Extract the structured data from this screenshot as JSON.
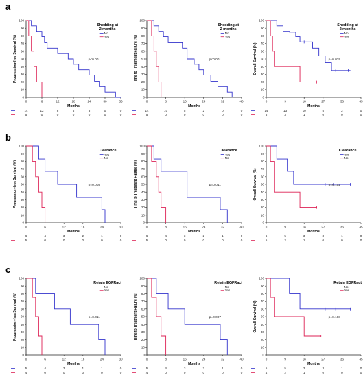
{
  "panels": [
    {
      "letter": "a"
    },
    {
      "letter": "b"
    },
    {
      "letter": "c"
    }
  ],
  "chart_data": [
    {
      "type": "line",
      "panel": "a",
      "title": "Shedding at 2 months",
      "xlabel": "Months",
      "ylabel": "Progression-free Survival (%)",
      "xlim": [
        0,
        36
      ],
      "ylim": [
        0,
        100
      ],
      "xticks": [
        0,
        6,
        12,
        18,
        24,
        30,
        36
      ],
      "yticks": [
        0,
        10,
        20,
        30,
        40,
        50,
        60,
        70,
        80,
        90,
        100
      ],
      "pvalue": "p<0.001",
      "legend_position": "top-right",
      "risk_ticks": [
        0,
        6,
        12,
        18,
        24,
        30,
        36
      ],
      "series": [
        {
          "name": "No",
          "color": "#3333cc",
          "x": [
            0,
            2,
            4,
            6,
            7,
            8,
            12,
            14,
            16,
            18,
            20,
            24,
            26,
            28,
            30,
            34,
            36
          ],
          "y": [
            100,
            93,
            86,
            79,
            71,
            64,
            57,
            57,
            50,
            43,
            36,
            29,
            21,
            14,
            7,
            0,
            0
          ],
          "censored": [],
          "risk": [
            "14",
            "12",
            "8",
            "6",
            "3",
            "0",
            "0"
          ]
        },
        {
          "name": "Yes",
          "color": "#dd2255",
          "x": [
            0,
            1,
            2,
            3,
            4,
            6
          ],
          "y": [
            100,
            80,
            60,
            40,
            20,
            0
          ],
          "censored": [],
          "risk": [
            "5",
            "0",
            "0",
            "0",
            "0",
            "0",
            "0"
          ]
        }
      ]
    },
    {
      "type": "line",
      "panel": "a",
      "title": "Shedding at 2 months",
      "xlabel": "Months",
      "ylabel": "Time to Treatment Failure (%)",
      "xlim": [
        0,
        40
      ],
      "ylim": [
        0,
        100
      ],
      "xticks": [
        0,
        8,
        16,
        24,
        32,
        40
      ],
      "yticks": [
        0,
        10,
        20,
        30,
        40,
        50,
        60,
        70,
        80,
        90,
        100
      ],
      "pvalue": "p<0.001",
      "legend_position": "top-right",
      "risk_ticks": [
        0,
        8,
        16,
        24,
        32,
        40
      ],
      "series": [
        {
          "name": "No",
          "color": "#3333cc",
          "x": [
            0,
            3,
            5,
            7,
            9,
            13,
            15,
            17,
            20,
            22,
            24,
            27,
            30,
            34,
            36
          ],
          "y": [
            100,
            93,
            86,
            79,
            71,
            71,
            64,
            50,
            43,
            36,
            29,
            21,
            14,
            7,
            0
          ],
          "censored": [],
          "risk": [
            "14",
            "10",
            "5",
            "2",
            "0",
            "0"
          ]
        },
        {
          "name": "Yes",
          "color": "#dd2255",
          "x": [
            0,
            2,
            3,
            4,
            5,
            6
          ],
          "y": [
            100,
            80,
            60,
            40,
            20,
            0
          ],
          "censored": [],
          "risk": [
            "5",
            "0",
            "0",
            "0",
            "0",
            "0"
          ]
        }
      ]
    },
    {
      "type": "line",
      "panel": "a",
      "title": "Shedding at 2 months",
      "xlabel": "Months",
      "ylabel": "Overall Survival (%)",
      "xlim": [
        0,
        45
      ],
      "ylim": [
        0,
        100
      ],
      "xticks": [
        0,
        9,
        18,
        27,
        36,
        45
      ],
      "yticks": [
        0,
        10,
        20,
        30,
        40,
        50,
        60,
        70,
        80,
        90,
        100
      ],
      "pvalue": "p=0.029",
      "legend_position": "top-right",
      "risk_ticks": [
        0,
        9,
        18,
        27,
        36,
        45
      ],
      "series": [
        {
          "name": "No",
          "color": "#3333cc",
          "x": [
            0,
            5,
            8,
            11,
            14,
            16,
            19,
            22,
            25,
            28,
            31,
            40
          ],
          "y": [
            100,
            93,
            86,
            85,
            79,
            72,
            72,
            64,
            54,
            45,
            35,
            35
          ],
          "censored": [
            [
              18,
              72
            ],
            [
              33,
              35
            ],
            [
              36,
              35
            ],
            [
              39,
              35
            ]
          ],
          "risk": [
            "14",
            "13",
            "10",
            "5",
            "2",
            "0"
          ]
        },
        {
          "name": "Yes",
          "color": "#dd2255",
          "x": [
            0,
            2,
            3,
            4,
            16,
            24
          ],
          "y": [
            100,
            80,
            60,
            40,
            20,
            20
          ],
          "censored": [
            [
              24,
              20
            ]
          ],
          "risk": [
            "5",
            "3",
            "1",
            "0",
            "0",
            "0"
          ]
        }
      ]
    },
    {
      "type": "line",
      "panel": "b",
      "title": "Clearance",
      "xlabel": "Months",
      "ylabel": "Progression-free Survival (%)",
      "xlim": [
        0,
        30
      ],
      "ylim": [
        0,
        100
      ],
      "xticks": [
        0,
        6,
        12,
        18,
        24,
        30
      ],
      "yticks": [
        0,
        10,
        20,
        30,
        40,
        50,
        60,
        70,
        80,
        90,
        100
      ],
      "pvalue": "p=0.008",
      "legend_position": "top-right",
      "risk_ticks": [
        0,
        6,
        12,
        18,
        24,
        30
      ],
      "series": [
        {
          "name": "Yes",
          "color": "#3333cc",
          "x": [
            0,
            4,
            6,
            10,
            16,
            24,
            25
          ],
          "y": [
            100,
            83,
            67,
            50,
            33,
            17,
            0
          ],
          "censored": [],
          "risk": [
            "6",
            "4",
            "3",
            "2",
            "1",
            "0"
          ]
        },
        {
          "name": "No",
          "color": "#dd2255",
          "x": [
            0,
            2,
            3,
            4,
            5,
            6
          ],
          "y": [
            100,
            80,
            60,
            40,
            20,
            0
          ],
          "censored": [],
          "risk": [
            "5",
            "0",
            "0",
            "0",
            "0",
            "0"
          ]
        }
      ]
    },
    {
      "type": "line",
      "panel": "b",
      "title": "Clearance",
      "xlabel": "Months",
      "ylabel": "Time to Treatment Failure (%)",
      "xlim": [
        0,
        40
      ],
      "ylim": [
        0,
        100
      ],
      "xticks": [
        0,
        8,
        16,
        24,
        32,
        40
      ],
      "yticks": [
        0,
        10,
        20,
        30,
        40,
        50,
        60,
        70,
        80,
        90,
        100
      ],
      "pvalue": "p=0.011",
      "legend_position": "top-right",
      "risk_ticks": [
        0,
        8,
        16,
        24,
        32,
        40
      ],
      "series": [
        {
          "name": "Yes",
          "color": "#3333cc",
          "x": [
            0,
            3,
            6,
            10,
            17,
            31,
            34
          ],
          "y": [
            100,
            83,
            67,
            67,
            33,
            17,
            0
          ],
          "censored": [],
          "risk": [
            "6",
            "4",
            "3",
            "2",
            "1",
            "0"
          ]
        },
        {
          "name": "No",
          "color": "#dd2255",
          "x": [
            0,
            2,
            4,
            5,
            6,
            8
          ],
          "y": [
            100,
            80,
            60,
            40,
            20,
            0
          ],
          "censored": [],
          "risk": [
            "5",
            "0",
            "0",
            "0",
            "0",
            "0"
          ]
        }
      ]
    },
    {
      "type": "line",
      "panel": "b",
      "title": "Clearance",
      "xlabel": "Months",
      "ylabel": "Overall Survival (%)",
      "xlim": [
        0,
        45
      ],
      "ylim": [
        0,
        100
      ],
      "xticks": [
        0,
        9,
        18,
        27,
        36,
        45
      ],
      "yticks": [
        0,
        10,
        20,
        30,
        40,
        50,
        60,
        70,
        80,
        90,
        100
      ],
      "pvalue": "p=0.152",
      "legend_position": "top-right",
      "risk_ticks": [
        0,
        9,
        18,
        27,
        36,
        45
      ],
      "series": [
        {
          "name": "Yes",
          "color": "#3333cc",
          "x": [
            0,
            5,
            10,
            13,
            40
          ],
          "y": [
            100,
            83,
            67,
            50,
            50
          ],
          "censored": [
            [
              28,
              50
            ],
            [
              32,
              50
            ],
            [
              36,
              50
            ],
            [
              40,
              50
            ]
          ],
          "risk": [
            "6",
            "5",
            "3",
            "3",
            "1",
            "0"
          ]
        },
        {
          "name": "No",
          "color": "#dd2255",
          "x": [
            0,
            2,
            4,
            16,
            24
          ],
          "y": [
            100,
            80,
            40,
            20,
            20
          ],
          "censored": [
            [
              24,
              20
            ]
          ],
          "risk": [
            "5",
            "2",
            "1",
            "0",
            "0",
            "0"
          ]
        }
      ]
    },
    {
      "type": "line",
      "panel": "c",
      "title": "Retain EGFRact",
      "xlabel": "Months",
      "ylabel": "Progression-free Survival (%)",
      "xlim": [
        0,
        30
      ],
      "ylim": [
        0,
        100
      ],
      "xticks": [
        0,
        6,
        12,
        18,
        24,
        30
      ],
      "yticks": [
        0,
        10,
        20,
        30,
        40,
        50,
        60,
        70,
        80,
        90,
        100
      ],
      "pvalue": "p=0.011",
      "legend_position": "top-right",
      "risk_ticks": [
        0,
        6,
        12,
        18,
        24,
        30
      ],
      "series": [
        {
          "name": "No",
          "color": "#3333cc",
          "x": [
            0,
            3,
            9,
            14,
            23,
            25
          ],
          "y": [
            100,
            80,
            60,
            40,
            20,
            0
          ],
          "censored": [],
          "risk": [
            "5",
            "4",
            "3",
            "1",
            "1",
            "0"
          ]
        },
        {
          "name": "Yes",
          "color": "#dd2255",
          "x": [
            0,
            2,
            3,
            4,
            5
          ],
          "y": [
            100,
            75,
            50,
            25,
            0
          ],
          "censored": [],
          "risk": [
            "4",
            "0",
            "0",
            "0",
            "0",
            "0"
          ]
        }
      ]
    },
    {
      "type": "line",
      "panel": "c",
      "title": "Retain EGFRact",
      "xlabel": "Months",
      "ylabel": "Time to Treatment Failure (%)",
      "xlim": [
        0,
        40
      ],
      "ylim": [
        0,
        100
      ],
      "xticks": [
        0,
        8,
        16,
        24,
        32,
        40
      ],
      "yticks": [
        0,
        10,
        20,
        30,
        40,
        50,
        60,
        70,
        80,
        90,
        100
      ],
      "pvalue": "p=0.007",
      "legend_position": "top-right",
      "risk_ticks": [
        0,
        8,
        16,
        24,
        32,
        40
      ],
      "series": [
        {
          "name": "No",
          "color": "#3333cc",
          "x": [
            0,
            4,
            9,
            16,
            31,
            34
          ],
          "y": [
            100,
            80,
            60,
            40,
            20,
            0
          ],
          "censored": [],
          "risk": [
            "5",
            "4",
            "3",
            "2",
            "1",
            "0"
          ]
        },
        {
          "name": "Yes",
          "color": "#dd2255",
          "x": [
            0,
            2,
            4,
            6,
            8
          ],
          "y": [
            100,
            75,
            50,
            25,
            0
          ],
          "censored": [],
          "risk": [
            "4",
            "0",
            "0",
            "0",
            "0",
            "0"
          ]
        }
      ]
    },
    {
      "type": "line",
      "panel": "c",
      "title": "Retain EGFRact",
      "xlabel": "Months",
      "ylabel": "Overall Survival (%)",
      "xlim": [
        0,
        45
      ],
      "ylim": [
        0,
        100
      ],
      "xticks": [
        0,
        9,
        18,
        27,
        36,
        45
      ],
      "yticks": [
        0,
        10,
        20,
        30,
        40,
        50,
        60,
        70,
        80,
        90,
        100
      ],
      "pvalue": "p=0.188",
      "legend_position": "top-right",
      "risk_ticks": [
        0,
        9,
        18,
        27,
        36,
        45
      ],
      "series": [
        {
          "name": "No",
          "color": "#3333cc",
          "x": [
            0,
            11,
            16,
            40
          ],
          "y": [
            100,
            80,
            60,
            60
          ],
          "censored": [
            [
              28,
              60
            ],
            [
              33,
              60
            ],
            [
              36,
              60
            ],
            [
              40,
              60
            ]
          ],
          "risk": [
            "5",
            "5",
            "3",
            "3",
            "1",
            "0"
          ]
        },
        {
          "name": "Yes",
          "color": "#dd2255",
          "x": [
            0,
            2,
            4,
            18,
            26
          ],
          "y": [
            100,
            75,
            50,
            25,
            25
          ],
          "censored": [
            [
              26,
              25
            ]
          ],
          "risk": [
            "4",
            "2",
            "1",
            "0",
            "0",
            "0"
          ]
        }
      ]
    }
  ]
}
